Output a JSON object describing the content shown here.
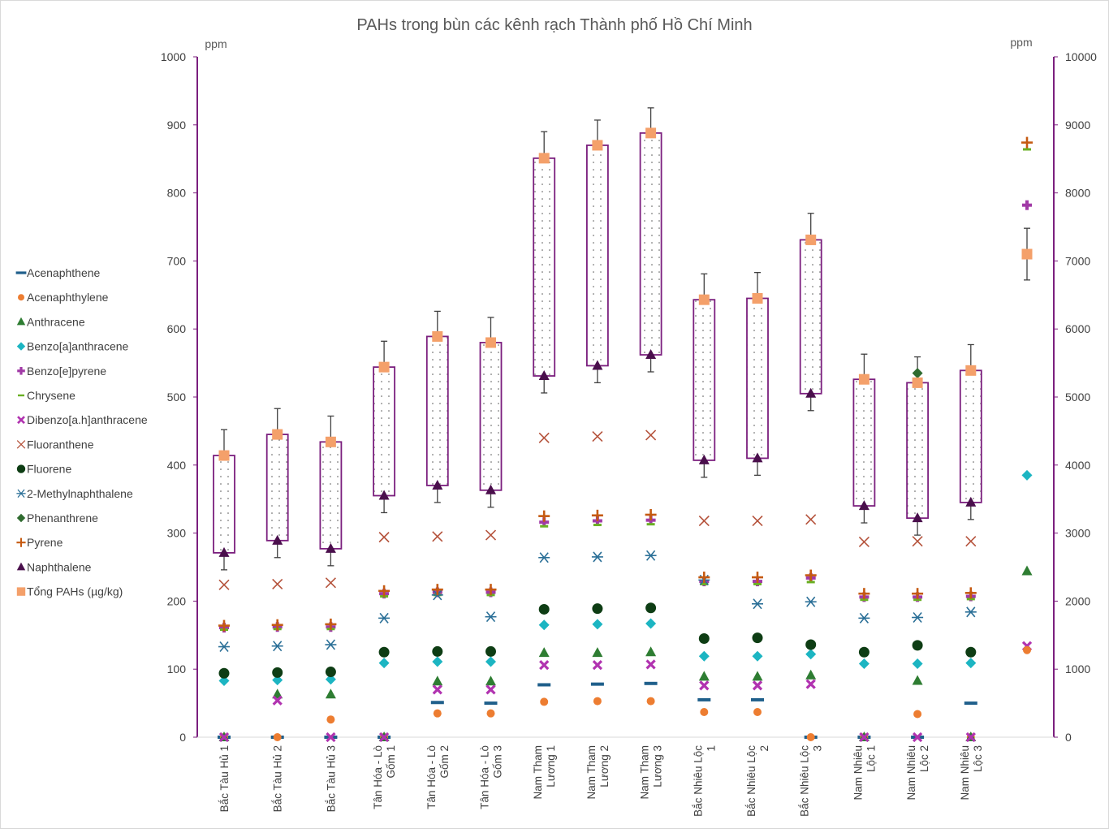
{
  "chart_data": {
    "type": "scatter",
    "title": "PAHs trong bùn các kênh rạch Thành phố Hồ Chí Minh",
    "y_unit_left": "ppm",
    "y_unit_right": "ppm",
    "ylim_left": [
      0,
      1000
    ],
    "ylim_right": [
      0,
      10000
    ],
    "yticks_left": [
      "0",
      "100",
      "200",
      "300",
      "400",
      "500",
      "600",
      "700",
      "800",
      "900",
      "1000"
    ],
    "yticks_right": [
      "0",
      "1000",
      "2000",
      "3000",
      "4000",
      "5000",
      "6000",
      "7000",
      "8000",
      "9000",
      "10000"
    ],
    "grid": false,
    "legend_position": "left",
    "categories": [
      [
        "Bắc Tàu Hủ 1"
      ],
      [
        "Bắc Tàu Hủ 2"
      ],
      [
        "Bắc Tàu Hủ 3"
      ],
      [
        "Tân Hóa - Lò",
        "Gốm 1"
      ],
      [
        "Tân Hóa - Lò",
        "Gốm 2"
      ],
      [
        "Tân Hóa - Lò",
        "Gốm 3"
      ],
      [
        "Nam Tham",
        "Lương 1"
      ],
      [
        "Nam Tham",
        "Lương 2"
      ],
      [
        "Nam Tham",
        "Lương 3"
      ],
      [
        "Bắc Nhiêu Lộc",
        "1"
      ],
      [
        "Bắc Nhiêu Lộc",
        "2"
      ],
      [
        "Bắc Nhiêu Lộc",
        "3"
      ],
      [
        "Nam Nhiêu",
        "Lộc 1"
      ],
      [
        "Nam Nhiêu",
        "Lộc 2"
      ],
      [
        "Nam Nhiêu",
        "Lộc 3"
      ]
    ],
    "series": [
      {
        "name": "Acenaphthene",
        "marker": "dash",
        "color": "#1f5f8b",
        "values": [
          0,
          0,
          0,
          0,
          51,
          50,
          77,
          78,
          79,
          55,
          55,
          0,
          0,
          0,
          50
        ]
      },
      {
        "name": "Acenaphthylene",
        "marker": "circle-small",
        "color": "#ed7d31",
        "values": [
          0,
          0,
          26,
          0,
          35,
          35,
          52,
          53,
          53,
          37,
          37,
          0,
          0,
          34,
          0
        ]
      },
      {
        "name": "Anthracene",
        "marker": "triangle",
        "color": "#2e7d32",
        "values": [
          0,
          63,
          63,
          0,
          82,
          82,
          124,
          124,
          125,
          89,
          89,
          91,
          0,
          83,
          0
        ]
      },
      {
        "name": "Benzo[a]anthracene",
        "marker": "diamond",
        "color": "#1cb5c2",
        "values": [
          83,
          84,
          85,
          109,
          111,
          111,
          165,
          166,
          167,
          119,
          119,
          122,
          108,
          108,
          109
        ]
      },
      {
        "name": "Benzo[e]pyrene",
        "marker": "plus-bold",
        "color": "#a13aa6",
        "values": [
          161,
          162,
          162,
          211,
          213,
          213,
          316,
          318,
          319,
          229,
          229,
          234,
          206,
          206,
          207
        ]
      },
      {
        "name": "Chrysene",
        "marker": "dash-small",
        "color": "#6ab023",
        "values": [
          158,
          159,
          159,
          207,
          209,
          209,
          310,
          312,
          313,
          225,
          225,
          228,
          202,
          202,
          203
        ]
      },
      {
        "name": "Dibenzo[a.h]anthracene",
        "marker": "x-bold",
        "color": "#b133b0",
        "values": [
          0,
          54,
          0,
          0,
          70,
          70,
          106,
          106,
          107,
          76,
          76,
          78,
          0,
          0,
          0
        ]
      },
      {
        "name": "Fluoranthene",
        "marker": "x",
        "color": "#b5533c",
        "values": [
          224,
          225,
          227,
          294,
          295,
          297,
          440,
          442,
          444,
          318,
          318,
          320,
          287,
          288,
          288
        ]
      },
      {
        "name": "Fluorene",
        "marker": "circle",
        "color": "#0e3d14",
        "values": [
          94,
          95,
          96,
          125,
          126,
          126,
          188,
          189,
          190,
          145,
          146,
          136,
          125,
          135,
          125
        ]
      },
      {
        "name": "2-Methylnaphthalene",
        "marker": "asterisk",
        "color": "#2a6f97",
        "values": [
          133,
          134,
          136,
          175,
          209,
          177,
          264,
          265,
          267,
          231,
          196,
          199,
          175,
          176,
          184
        ]
      },
      {
        "name": "Phenanthrene",
        "marker": "diamond-dark",
        "color": "#2f6b2f",
        "values": [
          null,
          null,
          null,
          null,
          null,
          null,
          null,
          null,
          null,
          null,
          null,
          null,
          null,
          535,
          null
        ]
      },
      {
        "name": "Pyrene",
        "marker": "plus",
        "color": "#c55a11",
        "values": [
          164,
          165,
          166,
          215,
          217,
          217,
          325,
          326,
          327,
          235,
          235,
          238,
          211,
          211,
          212
        ]
      },
      {
        "name": "Naphthalene",
        "marker": "triangle-dark",
        "color": "#4a0f4c",
        "values": [
          271,
          289,
          277,
          355,
          370,
          363,
          531,
          546,
          562,
          407,
          410,
          505,
          340,
          322,
          345
        ]
      },
      {
        "name": "Tổng PAHs (µg/kg)",
        "marker": "square",
        "color": "#f4a06a",
        "values": [
          414,
          445,
          434,
          544,
          589,
          580,
          851,
          870,
          888,
          643,
          645,
          731,
          526,
          521,
          539
        ],
        "error_plus": [
          38,
          38,
          38,
          38,
          37,
          37,
          39,
          37,
          37,
          38,
          38,
          39,
          37,
          38,
          38
        ],
        "error_minus": [
          0,
          0,
          0,
          0,
          0,
          0,
          0,
          0,
          0,
          0,
          0,
          0,
          0,
          0,
          0
        ]
      }
    ],
    "boxes": {
      "low": [
        271,
        289,
        277,
        355,
        370,
        363,
        531,
        546,
        562,
        407,
        410,
        505,
        340,
        322,
        345
      ],
      "high": [
        414,
        445,
        434,
        544,
        589,
        580,
        851,
        870,
        888,
        643,
        645,
        731,
        526,
        521,
        539
      ],
      "low_error_minus": [
        25,
        25,
        25,
        25,
        25,
        25,
        25,
        25,
        25,
        25,
        25,
        25,
        25,
        25,
        25
      ]
    },
    "secondary_points": [
      {
        "series": "Pyrene",
        "value": 8740
      },
      {
        "series": "Chrysene",
        "value": 8640
      },
      {
        "series": "Benzo[e]pyrene",
        "value": 7820
      },
      {
        "series": "Tổng PAHs (µg/kg)",
        "value": 7100,
        "error_plus": 380,
        "error_minus": 380
      },
      {
        "series": "Benzo[a]anthracene",
        "value": 3850
      },
      {
        "series": "Anthracene",
        "value": 2440
      },
      {
        "series": "Dibenzo[a.h]anthracene",
        "value": 1340
      },
      {
        "series": "Acenaphthylene",
        "value": 1280
      }
    ]
  }
}
